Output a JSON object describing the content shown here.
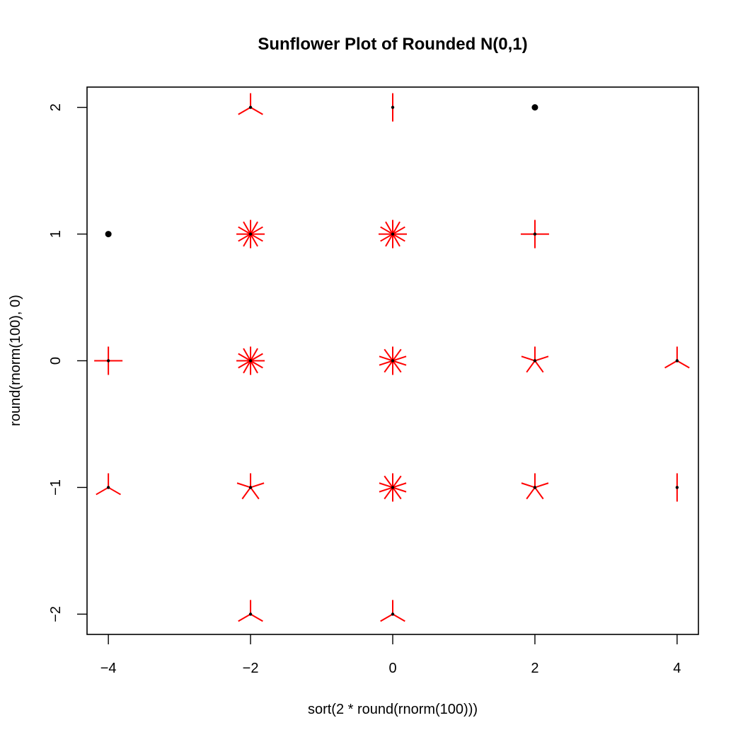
{
  "chart_data": {
    "type": "scatter",
    "subtype": "sunflower",
    "title": "Sunflower Plot of Rounded N(0,1)",
    "xlabel": "sort(2 * round(rnorm(100)))",
    "ylabel": "round(rnorm(100), 0)",
    "xlim": [
      -4.3,
      4.3
    ],
    "ylim": [
      -2.16,
      2.16
    ],
    "x_ticks": [
      -4,
      -2,
      0,
      2,
      4
    ],
    "y_ticks": [
      -2,
      -1,
      0,
      1,
      2
    ],
    "x_tick_labels": [
      "−4",
      "−2",
      "0",
      "2",
      "4"
    ],
    "y_tick_labels": [
      "−2",
      "−1",
      "0",
      "1",
      "2"
    ],
    "grid": false,
    "legend": "none",
    "colors": {
      "petal": "#ff0000",
      "point": "#000000",
      "axis": "#000000",
      "background": "#ffffff"
    },
    "points": [
      {
        "x": -4,
        "y": 1,
        "count": 1
      },
      {
        "x": -4,
        "y": 0,
        "count": 4
      },
      {
        "x": -4,
        "y": -1,
        "count": 3
      },
      {
        "x": -2,
        "y": 2,
        "count": 3
      },
      {
        "x": -2,
        "y": 1,
        "count": 12
      },
      {
        "x": -2,
        "y": 0,
        "count": 12
      },
      {
        "x": -2,
        "y": -1,
        "count": 5
      },
      {
        "x": -2,
        "y": -2,
        "count": 3
      },
      {
        "x": 0,
        "y": 2,
        "count": 2
      },
      {
        "x": 0,
        "y": 1,
        "count": 12
      },
      {
        "x": 0,
        "y": 0,
        "count": 10
      },
      {
        "x": 0,
        "y": -1,
        "count": 10
      },
      {
        "x": 0,
        "y": -2,
        "count": 3
      },
      {
        "x": 2,
        "y": 2,
        "count": 1
      },
      {
        "x": 2,
        "y": 1,
        "count": 4
      },
      {
        "x": 2,
        "y": 0,
        "count": 5
      },
      {
        "x": 2,
        "y": -1,
        "count": 5
      },
      {
        "x": 4,
        "y": 0,
        "count": 3
      },
      {
        "x": 4,
        "y": -1,
        "count": 2
      }
    ]
  }
}
